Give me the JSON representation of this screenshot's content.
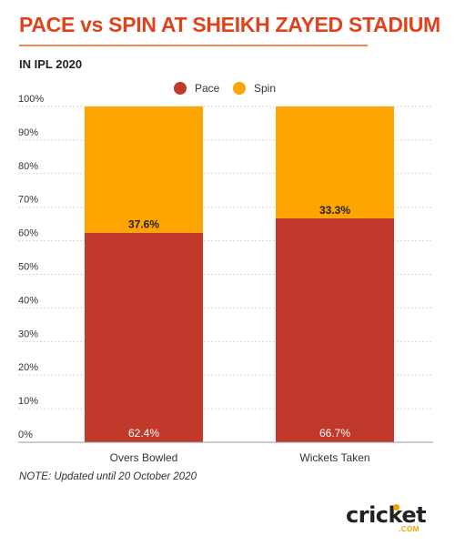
{
  "header": {
    "title": "PACE vs SPIN AT SHEIKH ZAYED STADIUM",
    "subtitle": "IN IPL 2020"
  },
  "note": "NOTE: Updated until 20 October 2020",
  "logo": {
    "word": "cricket",
    "suffix": ".COM"
  },
  "colors": {
    "title": "#e0431b",
    "pace": "#c0392b",
    "spin": "#ffa500"
  },
  "chart_data": {
    "type": "bar",
    "stacked": true,
    "categories": [
      "Overs Bowled",
      "Wickets Taken"
    ],
    "series": [
      {
        "name": "Pace",
        "color": "#c0392b",
        "values": [
          62.4,
          66.7
        ],
        "labels": [
          "62.4%",
          "66.7%"
        ]
      },
      {
        "name": "Spin",
        "color": "#ffa500",
        "values": [
          37.6,
          33.3
        ],
        "labels": [
          "37.6%",
          "33.3%"
        ]
      }
    ],
    "ylim": [
      0,
      100
    ],
    "yticks": [
      "0%",
      "10%",
      "20%",
      "30%",
      "40%",
      "50%",
      "60%",
      "70%",
      "80%",
      "90%",
      "100%"
    ],
    "grid": true,
    "legend": "top-center"
  }
}
